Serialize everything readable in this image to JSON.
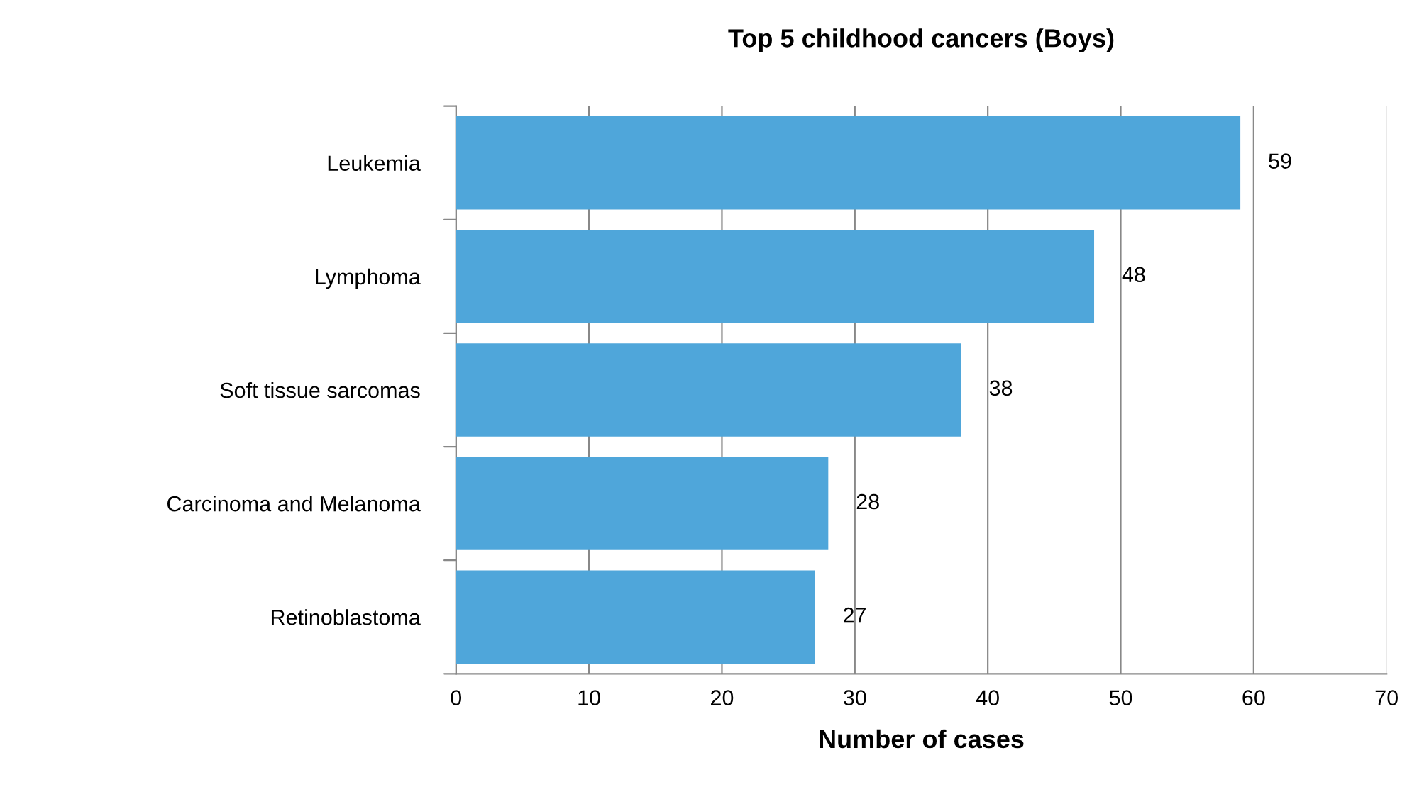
{
  "chart_data": {
    "type": "bar",
    "orientation": "horizontal",
    "title": "Top 5 childhood cancers (Boys)",
    "xlabel": "Number of cases",
    "categories": [
      "Leukemia",
      "Lymphoma",
      "Soft tissue sarcomas",
      "Carcinoma and Melanoma",
      "Retinoblastoma"
    ],
    "values": [
      59,
      48,
      38,
      28,
      27
    ],
    "color": "#4fa6da",
    "xlim": [
      0,
      70
    ],
    "xticks": [
      0,
      10,
      20,
      30,
      40,
      50,
      60,
      70
    ],
    "grid": "x",
    "data_labels": true,
    "legend": false
  }
}
